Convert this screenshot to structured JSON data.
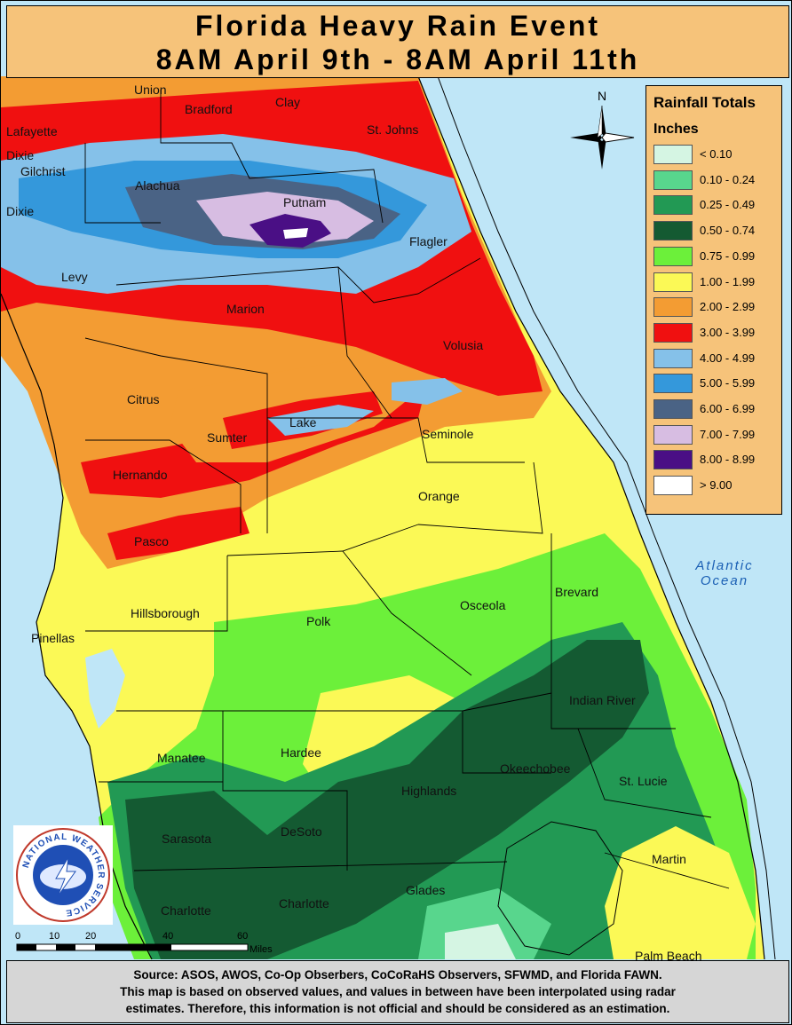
{
  "title": {
    "line1": "Florida Heavy Rain Event",
    "line2": "8AM April 9th - 8AM April 11th"
  },
  "legend": {
    "title": "Rainfall Totals",
    "units": "Inches",
    "items": [
      {
        "label": "< 0.10",
        "color": "#d5f5e3"
      },
      {
        "label": "0.10 - 0.24",
        "color": "#58d68d"
      },
      {
        "label": "0.25 - 0.49",
        "color": "#229954"
      },
      {
        "label": "0.50 - 0.74",
        "color": "#145a32"
      },
      {
        "label": "0.75 - 0.99",
        "color": "#6cf03a"
      },
      {
        "label": "1.00 - 1.99",
        "color": "#fbf956"
      },
      {
        "label": "2.00 - 2.99",
        "color": "#f39c33"
      },
      {
        "label": "3.00 - 3.99",
        "color": "#f01010"
      },
      {
        "label": "4.00 - 4.99",
        "color": "#85c1e9"
      },
      {
        "label": "5.00 - 5.99",
        "color": "#3498db"
      },
      {
        "label": "6.00 - 6.99",
        "color": "#4a6385"
      },
      {
        "label": "7.00 - 7.99",
        "color": "#d7bde2"
      },
      {
        "label": "8.00 - 8.99",
        "color": "#4a0f85"
      },
      {
        "label": "> 9.00",
        "color": "#ffffff"
      }
    ]
  },
  "compass": {
    "label": "N"
  },
  "ocean_label": {
    "line1": "Atlantic",
    "line2": "Ocean"
  },
  "counties": {
    "union": "Union",
    "bradford": "Bradford",
    "clay": "Clay",
    "stjohns": "St. Johns",
    "lafayette": "Lafayette",
    "dixie1": "Dixie",
    "gilchrist": "Gilchrist",
    "dixie2": "Dixie",
    "alachua": "Alachua",
    "putnam": "Putnam",
    "flagler": "Flagler",
    "levy": "Levy",
    "marion": "Marion",
    "volusia": "Volusia",
    "citrus": "Citrus",
    "lake": "Lake",
    "sumter": "Sumter",
    "seminole": "Seminole",
    "hernando": "Hernando",
    "orange": "Orange",
    "pasco": "Pasco",
    "brevard": "Brevard",
    "osceola": "Osceola",
    "hillsborough": "Hillsborough",
    "polk": "Polk",
    "pinellas": "Pinellas",
    "indianriver": "Indian River",
    "manatee": "Manatee",
    "hardee": "Hardee",
    "okeechobee": "Okeechobee",
    "highlands": "Highlands",
    "stlucie": "St. Lucie",
    "sarasota": "Sarasota",
    "desoto": "DeSoto",
    "martin": "Martin",
    "glades": "Glades",
    "charlotte1": "Charlotte",
    "charlotte2": "Charlotte",
    "palmbeach": "Palm Beach"
  },
  "scale": {
    "t0": "0",
    "t10": "10",
    "t20": "20",
    "t40": "40",
    "t60": "60",
    "units": "Miles"
  },
  "logo": {
    "text": "NATIONAL WEATHER SERVICE"
  },
  "footer": {
    "line1": "Source: ASOS, AWOS, Co-Op Obserbers, CoCoRaHS Observers, SFWMD, and Florida FAWN.",
    "line2": "This map is based on observed values, and values in between have been interpolated using radar",
    "line3": "estimates. Therefore, this information is not official and should be considered as an estimation."
  }
}
